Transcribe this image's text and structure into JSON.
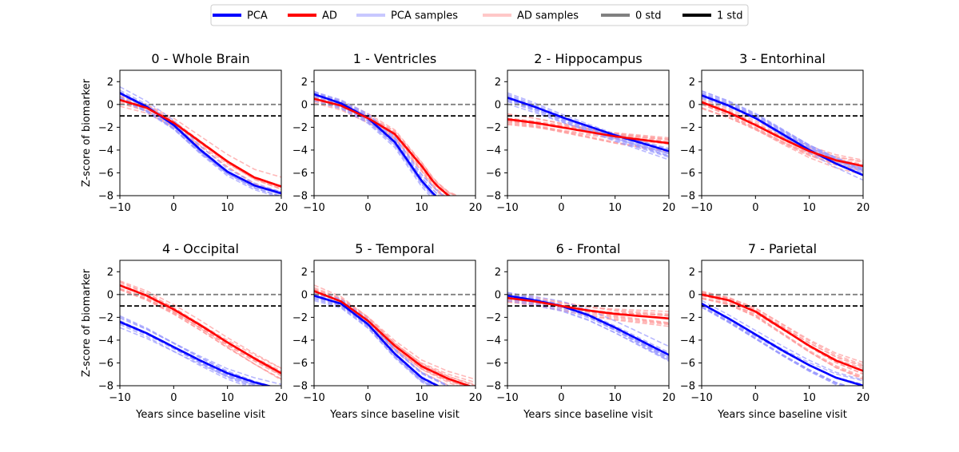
{
  "legend": {
    "placement": "top-center",
    "entries": [
      {
        "label": "PCA",
        "color": "#0000ff",
        "style": "solid-thick"
      },
      {
        "label": "AD",
        "color": "#ff0000",
        "style": "solid-thick"
      },
      {
        "label": "PCA samples",
        "color": "#c8c8ff",
        "style": "solid-light"
      },
      {
        "label": "AD samples",
        "color": "#ffc8c8",
        "style": "solid-light"
      },
      {
        "label": "0 std",
        "color": "#808080",
        "style": "solid-thick"
      },
      {
        "label": "1 std",
        "color": "#000000",
        "style": "solid-thick"
      }
    ]
  },
  "colors": {
    "pca": "#0000ff",
    "ad": "#ff0000",
    "pca_samples": "#9a9aff",
    "ad_samples": "#ff9a9a",
    "zero_std": "#808080",
    "one_std": "#000000"
  },
  "chart_data": [
    {
      "type": "line",
      "title": "0 - Whole Brain",
      "xlabel": "",
      "ylabel": "Z-score of biomarker",
      "xlim": [
        -10,
        20
      ],
      "ylim": [
        -8,
        3
      ],
      "xticks": [
        -10,
        0,
        10,
        20
      ],
      "yticks": [
        2,
        0,
        -2,
        -4,
        -6,
        -8
      ],
      "reference_lines": [
        {
          "name": "0 std",
          "y": 0
        },
        {
          "name": "1 std",
          "y": -1
        }
      ],
      "x": [
        -10,
        -5,
        0,
        5,
        10,
        15,
        20
      ],
      "series": [
        {
          "name": "PCA",
          "values": [
            1.0,
            -0.2,
            -1.8,
            -4.0,
            -5.9,
            -7.1,
            -7.8
          ]
        },
        {
          "name": "AD",
          "values": [
            0.4,
            -0.3,
            -1.6,
            -3.3,
            -5.0,
            -6.4,
            -7.2
          ]
        }
      ]
    },
    {
      "type": "line",
      "title": "1 - Ventricles",
      "xlabel": "",
      "ylabel": "",
      "xlim": [
        -10,
        20
      ],
      "ylim": [
        -8,
        3
      ],
      "xticks": [
        -10,
        0,
        10,
        20
      ],
      "yticks": [
        2,
        0,
        -2,
        -4,
        -6,
        -8
      ],
      "reference_lines": [
        {
          "name": "0 std",
          "y": 0
        },
        {
          "name": "1 std",
          "y": -1
        }
      ],
      "x": [
        -10,
        -5,
        0,
        5,
        10,
        12.5,
        15,
        20
      ],
      "series": [
        {
          "name": "PCA",
          "values": [
            0.9,
            0.1,
            -1.2,
            -3.3,
            -6.7,
            -8.0,
            -9.0,
            -9.5
          ]
        },
        {
          "name": "AD",
          "values": [
            0.5,
            -0.1,
            -1.2,
            -2.6,
            -5.4,
            -7.0,
            -8.0,
            -9.0
          ]
        }
      ]
    },
    {
      "type": "line",
      "title": "2 - Hippocampus",
      "xlabel": "",
      "ylabel": "",
      "xlim": [
        -10,
        20
      ],
      "ylim": [
        -8,
        3
      ],
      "xticks": [
        -10,
        0,
        10,
        20
      ],
      "yticks": [
        2,
        0,
        -2,
        -4,
        -6,
        -8
      ],
      "reference_lines": [
        {
          "name": "0 std",
          "y": 0
        },
        {
          "name": "1 std",
          "y": -1
        }
      ],
      "x": [
        -10,
        -5,
        0,
        5,
        10,
        15,
        20
      ],
      "series": [
        {
          "name": "PCA",
          "values": [
            0.6,
            -0.2,
            -1.1,
            -1.9,
            -2.7,
            -3.4,
            -4.1
          ]
        },
        {
          "name": "AD",
          "values": [
            -1.3,
            -1.6,
            -2.0,
            -2.4,
            -2.8,
            -3.1,
            -3.4
          ]
        }
      ]
    },
    {
      "type": "line",
      "title": "3 - Entorhinal",
      "xlabel": "",
      "ylabel": "",
      "xlim": [
        -10,
        20
      ],
      "ylim": [
        -8,
        3
      ],
      "xticks": [
        -10,
        0,
        10,
        20
      ],
      "yticks": [
        2,
        0,
        -2,
        -4,
        -6,
        -8
      ],
      "reference_lines": [
        {
          "name": "0 std",
          "y": 0
        },
        {
          "name": "1 std",
          "y": -1
        }
      ],
      "x": [
        -10,
        -5,
        0,
        5,
        10,
        15,
        20
      ],
      "series": [
        {
          "name": "PCA",
          "values": [
            0.8,
            -0.1,
            -1.2,
            -2.6,
            -4.0,
            -5.2,
            -6.2
          ]
        },
        {
          "name": "AD",
          "values": [
            0.2,
            -0.7,
            -1.8,
            -3.0,
            -4.1,
            -4.9,
            -5.4
          ]
        }
      ]
    },
    {
      "type": "line",
      "title": "4 - Occipital",
      "xlabel": "Years since baseline visit",
      "ylabel": "Z-score of biomarker",
      "xlim": [
        -10,
        20
      ],
      "ylim": [
        -8,
        3
      ],
      "xticks": [
        -10,
        0,
        10,
        20
      ],
      "yticks": [
        2,
        0,
        -2,
        -4,
        -6,
        -8
      ],
      "reference_lines": [
        {
          "name": "0 std",
          "y": 0
        },
        {
          "name": "1 std",
          "y": -1
        }
      ],
      "x": [
        -10,
        -5,
        0,
        5,
        10,
        15,
        20
      ],
      "series": [
        {
          "name": "PCA",
          "values": [
            -2.4,
            -3.4,
            -4.6,
            -5.8,
            -6.9,
            -7.7,
            -8.3
          ]
        },
        {
          "name": "AD",
          "values": [
            0.8,
            -0.1,
            -1.3,
            -2.7,
            -4.2,
            -5.6,
            -6.9
          ]
        }
      ]
    },
    {
      "type": "line",
      "title": "5 - Temporal",
      "xlabel": "Years since baseline visit",
      "ylabel": "",
      "xlim": [
        -10,
        20
      ],
      "ylim": [
        -8,
        3
      ],
      "xticks": [
        -10,
        0,
        10,
        20
      ],
      "yticks": [
        2,
        0,
        -2,
        -4,
        -6,
        -8
      ],
      "reference_lines": [
        {
          "name": "0 std",
          "y": 0
        },
        {
          "name": "1 std",
          "y": -1
        }
      ],
      "x": [
        -10,
        -5,
        0,
        5,
        10,
        15,
        20
      ],
      "series": [
        {
          "name": "PCA",
          "values": [
            -0.1,
            -0.8,
            -2.6,
            -5.2,
            -7.3,
            -8.5,
            -9.0
          ]
        },
        {
          "name": "AD",
          "values": [
            0.3,
            -0.6,
            -2.3,
            -4.5,
            -6.3,
            -7.4,
            -8.2
          ]
        }
      ]
    },
    {
      "type": "line",
      "title": "6 - Frontal",
      "xlabel": "Years since baseline visit",
      "ylabel": "",
      "xlim": [
        -10,
        20
      ],
      "ylim": [
        -8,
        3
      ],
      "xticks": [
        -10,
        0,
        10,
        20
      ],
      "yticks": [
        2,
        0,
        -2,
        -4,
        -6,
        -8
      ],
      "reference_lines": [
        {
          "name": "0 std",
          "y": 0
        },
        {
          "name": "1 std",
          "y": -1
        }
      ],
      "x": [
        -10,
        -5,
        0,
        5,
        10,
        15,
        20
      ],
      "series": [
        {
          "name": "PCA",
          "values": [
            -0.1,
            -0.5,
            -1.0,
            -1.8,
            -2.9,
            -4.1,
            -5.3
          ]
        },
        {
          "name": "AD",
          "values": [
            -0.3,
            -0.6,
            -1.0,
            -1.4,
            -1.7,
            -1.9,
            -2.1
          ]
        }
      ]
    },
    {
      "type": "line",
      "title": "7 - Parietal",
      "xlabel": "Years since baseline visit",
      "ylabel": "",
      "xlim": [
        -10,
        20
      ],
      "ylim": [
        -8,
        3
      ],
      "xticks": [
        -10,
        0,
        10,
        20
      ],
      "yticks": [
        2,
        0,
        -2,
        -4,
        -6,
        -8
      ],
      "reference_lines": [
        {
          "name": "0 std",
          "y": 0
        },
        {
          "name": "1 std",
          "y": -1
        }
      ],
      "x": [
        -10,
        -5,
        0,
        5,
        10,
        15,
        20
      ],
      "series": [
        {
          "name": "PCA",
          "values": [
            -0.8,
            -2.1,
            -3.5,
            -4.9,
            -6.2,
            -7.3,
            -8.0
          ]
        },
        {
          "name": "AD",
          "values": [
            0.0,
            -0.5,
            -1.5,
            -3.0,
            -4.5,
            -5.8,
            -6.7
          ]
        }
      ]
    }
  ]
}
